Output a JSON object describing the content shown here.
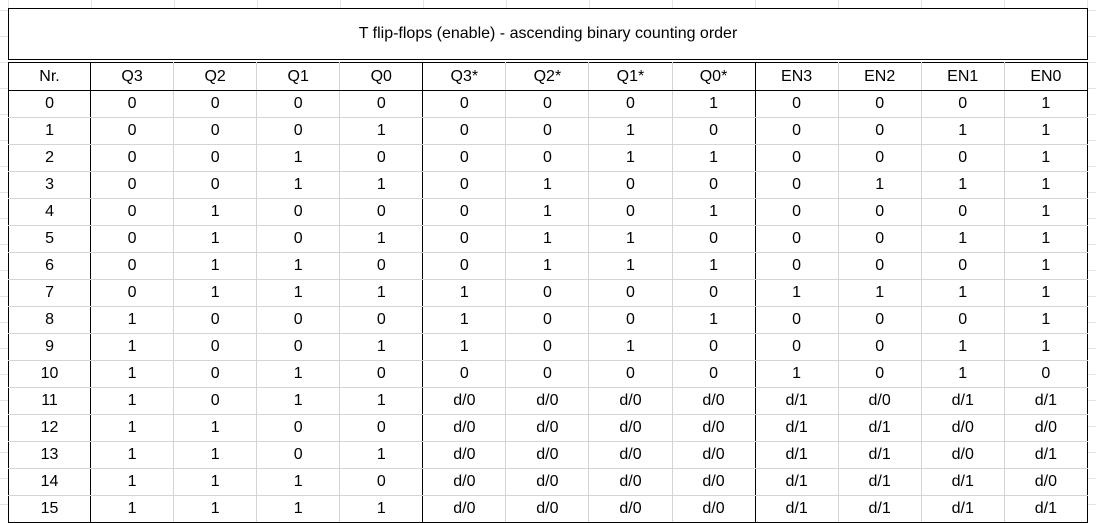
{
  "title": "T flip-flops (enable) - ascending binary counting order",
  "headers": [
    "Nr.",
    "Q3",
    "Q2",
    "Q1",
    "Q0",
    "Q3*",
    "Q2*",
    "Q1*",
    "Q0*",
    "EN3",
    "EN2",
    "EN1",
    "EN0"
  ],
  "rows": [
    [
      "0",
      "0",
      "0",
      "0",
      "0",
      "0",
      "0",
      "0",
      "1",
      "0",
      "0",
      "0",
      "1"
    ],
    [
      "1",
      "0",
      "0",
      "0",
      "1",
      "0",
      "0",
      "1",
      "0",
      "0",
      "0",
      "1",
      "1"
    ],
    [
      "2",
      "0",
      "0",
      "1",
      "0",
      "0",
      "0",
      "1",
      "1",
      "0",
      "0",
      "0",
      "1"
    ],
    [
      "3",
      "0",
      "0",
      "1",
      "1",
      "0",
      "1",
      "0",
      "0",
      "0",
      "1",
      "1",
      "1"
    ],
    [
      "4",
      "0",
      "1",
      "0",
      "0",
      "0",
      "1",
      "0",
      "1",
      "0",
      "0",
      "0",
      "1"
    ],
    [
      "5",
      "0",
      "1",
      "0",
      "1",
      "0",
      "1",
      "1",
      "0",
      "0",
      "0",
      "1",
      "1"
    ],
    [
      "6",
      "0",
      "1",
      "1",
      "0",
      "0",
      "1",
      "1",
      "1",
      "0",
      "0",
      "0",
      "1"
    ],
    [
      "7",
      "0",
      "1",
      "1",
      "1",
      "1",
      "0",
      "0",
      "0",
      "1",
      "1",
      "1",
      "1"
    ],
    [
      "8",
      "1",
      "0",
      "0",
      "0",
      "1",
      "0",
      "0",
      "1",
      "0",
      "0",
      "0",
      "1"
    ],
    [
      "9",
      "1",
      "0",
      "0",
      "1",
      "1",
      "0",
      "1",
      "0",
      "0",
      "0",
      "1",
      "1"
    ],
    [
      "10",
      "1",
      "0",
      "1",
      "0",
      "0",
      "0",
      "0",
      "0",
      "1",
      "0",
      "1",
      "0"
    ],
    [
      "11",
      "1",
      "0",
      "1",
      "1",
      "d/0",
      "d/0",
      "d/0",
      "d/0",
      "d/1",
      "d/0",
      "d/1",
      "d/1"
    ],
    [
      "12",
      "1",
      "1",
      "0",
      "0",
      "d/0",
      "d/0",
      "d/0",
      "d/0",
      "d/1",
      "d/1",
      "d/0",
      "d/0"
    ],
    [
      "13",
      "1",
      "1",
      "0",
      "1",
      "d/0",
      "d/0",
      "d/0",
      "d/0",
      "d/1",
      "d/1",
      "d/0",
      "d/1"
    ],
    [
      "14",
      "1",
      "1",
      "1",
      "0",
      "d/0",
      "d/0",
      "d/0",
      "d/0",
      "d/1",
      "d/1",
      "d/1",
      "d/0"
    ],
    [
      "15",
      "1",
      "1",
      "1",
      "1",
      "d/0",
      "d/0",
      "d/0",
      "d/0",
      "d/1",
      "d/1",
      "d/1",
      "d/1"
    ]
  ]
}
